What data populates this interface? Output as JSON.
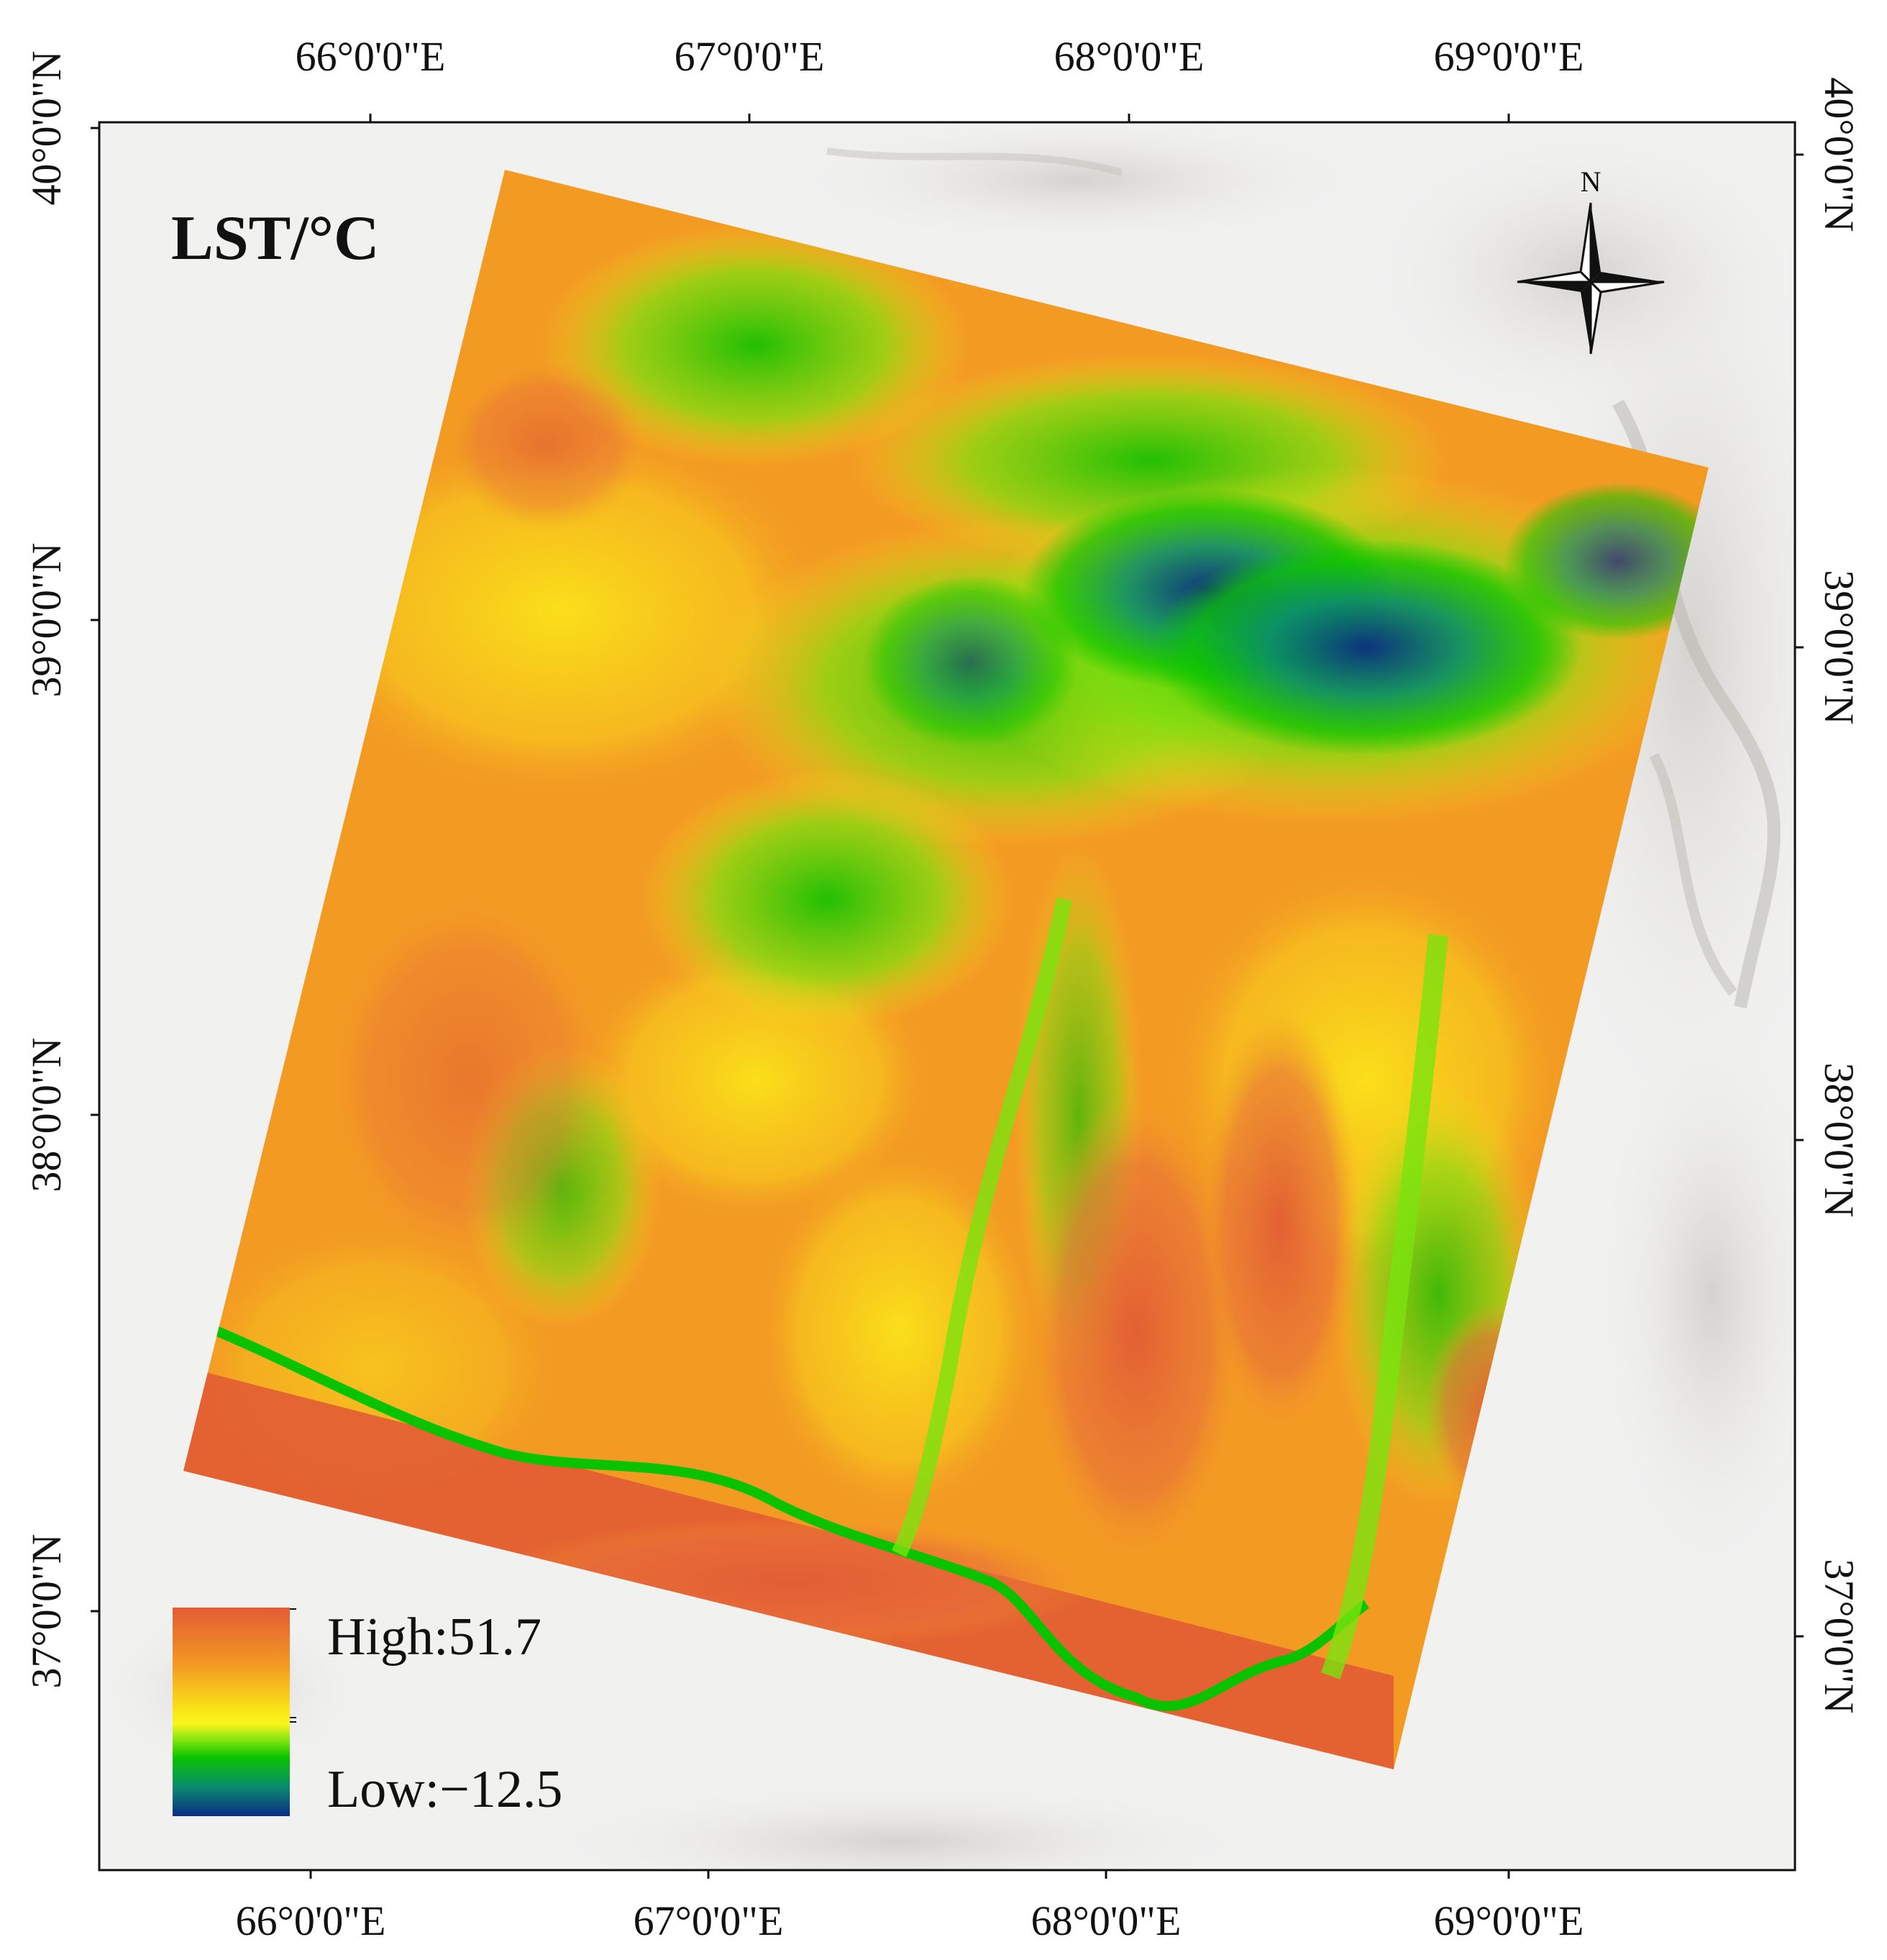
{
  "map": {
    "title": "LST/°C",
    "north_label": "N",
    "legend": {
      "high_label": "High:51.7",
      "low_label": "Low:−12.5",
      "high_value": 51.7,
      "low_value": -12.5,
      "ramp_colors": [
        "#e25c34",
        "#f39a23",
        "#fbe718",
        "#f8f51c",
        "#7be30e",
        "#0ac300",
        "#0a8b6e",
        "#0a2b84"
      ]
    },
    "axes": {
      "top_ticks": [
        "66°0'0\"E",
        "67°0'0\"E",
        "68°0'0\"E",
        "69°0'0\"E"
      ],
      "bottom_ticks": [
        "66°0'0\"E",
        "67°0'0\"E",
        "68°0'0\"E",
        "69°0'0\"E"
      ],
      "left_ticks": [
        "40°0'0\"N",
        "39°0'0\"N",
        "38°0'0\"N",
        "37°0'0\"N"
      ],
      "right_ticks": [
        "40°0'0\"N",
        "39°0'0\"N",
        "38°0'0\"N",
        "37°0'0\"N"
      ]
    },
    "colors": {
      "hot": "#e25c34",
      "warm": "#f39a23",
      "mild": "#fbe718",
      "cool": "#0ac300",
      "cold": "#0a2b84",
      "basemap": "#efefef"
    }
  }
}
